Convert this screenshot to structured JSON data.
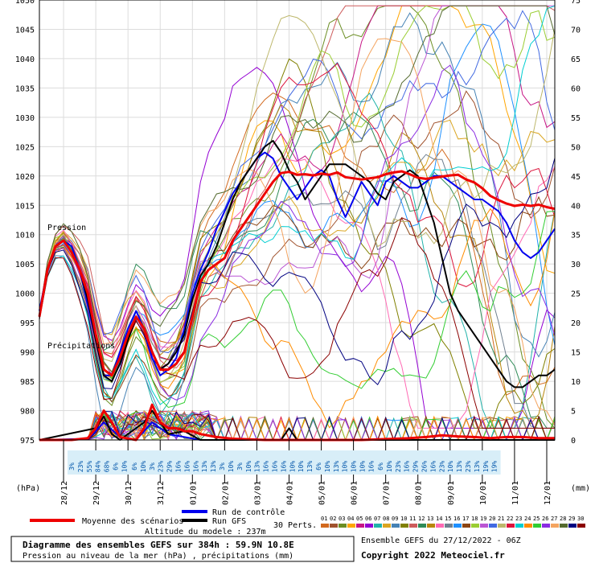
{
  "chart_data": {
    "type": "line",
    "left_axis_label": "(hPa)",
    "right_axis_label": "(mm)",
    "pressure_label": "Pression",
    "precip_label": "Précipitations",
    "y_left_ticks": [
      975,
      980,
      985,
      990,
      995,
      1000,
      1005,
      1010,
      1015,
      1020,
      1025,
      1030,
      1035,
      1040,
      1045,
      1050
    ],
    "y_left_range": [
      975,
      1050
    ],
    "y_right_ticks": [
      0,
      5,
      10,
      15,
      20,
      25,
      30,
      35,
      40,
      45,
      50,
      55,
      60,
      65,
      70,
      75
    ],
    "y_right_range": [
      0,
      75
    ],
    "x_ticks": [
      "28/12",
      "29/12",
      "30/12",
      "31/12",
      "01/01",
      "02/01",
      "03/01",
      "04/01",
      "05/01",
      "06/01",
      "07/01",
      "08/01",
      "09/01",
      "10/01",
      "11/01",
      "12/01"
    ],
    "x_range_hours": [
      0,
      384
    ],
    "grid": true,
    "snow_group_1": [
      "3%",
      "23%",
      "55%",
      "84%",
      "68%",
      "6%",
      "10%",
      "3%"
    ],
    "snow_group_2": [
      "6%",
      "10%",
      "3%",
      "23%",
      "29%",
      "16%",
      "16%",
      "16%",
      "13%",
      "13%",
      "3%"
    ],
    "snow_group_3": [
      "10%",
      "3%",
      "10%",
      "13%",
      "16%",
      "16%",
      "16%",
      "10%",
      "10%",
      "13%",
      "6%",
      "10%",
      "13%",
      "10%",
      "10%",
      "10%",
      "16%",
      "13%",
      "10%",
      "10%",
      "6%"
    ],
    "snow_group_4": [
      "6%",
      "10%",
      "23%",
      "16%",
      "29%",
      "26%",
      "16%",
      "23%",
      "10%",
      "13%",
      "23%",
      "13%",
      "19%",
      "19%"
    ],
    "series": [
      {
        "name": "Moyenne des scénarios",
        "color": "#ee0000",
        "pressure": [
          [
            0,
            996
          ],
          [
            6,
            1004
          ],
          [
            12,
            1008
          ],
          [
            18,
            1009
          ],
          [
            24,
            1007
          ],
          [
            30,
            1004
          ],
          [
            36,
            1000
          ],
          [
            42,
            993
          ],
          [
            48,
            987
          ],
          [
            54,
            986
          ],
          [
            60,
            989
          ],
          [
            66,
            993
          ],
          [
            72,
            996
          ],
          [
            78,
            994
          ],
          [
            84,
            990
          ],
          [
            90,
            987
          ],
          [
            96,
            987
          ],
          [
            102,
            988
          ],
          [
            108,
            990
          ],
          [
            114,
            996
          ],
          [
            120,
            1002
          ],
          [
            126,
            1004
          ],
          [
            132,
            1005
          ],
          [
            138,
            1006
          ],
          [
            144,
            1009
          ],
          [
            150,
            1011
          ],
          [
            156,
            1013
          ],
          [
            162,
            1015
          ],
          [
            168,
            1017
          ],
          [
            174,
            1019
          ],
          [
            180,
            1020.5
          ],
          [
            186,
            1020.7
          ],
          [
            192,
            1020.2
          ],
          [
            198,
            1020.3
          ],
          [
            204,
            1020.1
          ],
          [
            210,
            1020.4
          ],
          [
            216,
            1020.2
          ],
          [
            222,
            1020.6
          ],
          [
            228,
            1019.8
          ],
          [
            234,
            1019.6
          ],
          [
            240,
            1019.4
          ],
          [
            246,
            1019.6
          ],
          [
            252,
            1019.8
          ],
          [
            258,
            1020.3
          ],
          [
            264,
            1020.6
          ],
          [
            270,
            1020.8
          ],
          [
            276,
            1020.3
          ],
          [
            282,
            1019.7
          ],
          [
            288,
            1019.5
          ],
          [
            294,
            1019.7
          ],
          [
            300,
            1019.9
          ],
          [
            306,
            1020.1
          ],
          [
            312,
            1020.2
          ],
          [
            318,
            1019.4
          ],
          [
            324,
            1018.9
          ],
          [
            330,
            1017.9
          ],
          [
            336,
            1016.6
          ],
          [
            342,
            1015.9
          ],
          [
            348,
            1015.3
          ],
          [
            354,
            1014.9
          ],
          [
            360,
            1015.1
          ],
          [
            366,
            1014.9
          ],
          [
            372,
            1015.1
          ],
          [
            378,
            1014.7
          ],
          [
            384,
            1014.4
          ]
        ],
        "precip": [
          [
            0,
            0
          ],
          [
            12,
            0
          ],
          [
            24,
            0
          ],
          [
            36,
            0.3
          ],
          [
            42,
            2
          ],
          [
            48,
            5
          ],
          [
            54,
            3
          ],
          [
            60,
            0.5
          ],
          [
            72,
            0
          ],
          [
            78,
            2
          ],
          [
            84,
            6
          ],
          [
            90,
            3
          ],
          [
            96,
            2
          ],
          [
            102,
            2
          ],
          [
            108,
            1.5
          ],
          [
            114,
            1.5
          ],
          [
            120,
            1
          ],
          [
            132,
            0.5
          ],
          [
            144,
            0.2
          ],
          [
            168,
            0
          ],
          [
            240,
            0
          ],
          [
            276,
            0.3
          ],
          [
            288,
            0.5
          ],
          [
            300,
            0.8
          ],
          [
            312,
            0.6
          ],
          [
            324,
            0.5
          ],
          [
            336,
            0.3
          ],
          [
            348,
            0.5
          ],
          [
            360,
            0.5
          ],
          [
            372,
            0.3
          ],
          [
            384,
            0.3
          ]
        ]
      },
      {
        "name": "Run de contrôle",
        "color": "#0000ee",
        "pressure": [
          [
            0,
            997
          ],
          [
            6,
            1004
          ],
          [
            12,
            1008
          ],
          [
            18,
            1009
          ],
          [
            24,
            1008
          ],
          [
            30,
            1004
          ],
          [
            36,
            998
          ],
          [
            42,
            992
          ],
          [
            48,
            986
          ],
          [
            54,
            986
          ],
          [
            60,
            990
          ],
          [
            66,
            994
          ],
          [
            72,
            997
          ],
          [
            78,
            994
          ],
          [
            84,
            989
          ],
          [
            90,
            986
          ],
          [
            96,
            987
          ],
          [
            102,
            989
          ],
          [
            108,
            994
          ],
          [
            114,
            1000
          ],
          [
            120,
            1004
          ],
          [
            126,
            1007
          ],
          [
            132,
            1011
          ],
          [
            138,
            1014
          ],
          [
            144,
            1017
          ],
          [
            150,
            1019
          ],
          [
            156,
            1021
          ],
          [
            162,
            1023
          ],
          [
            168,
            1024
          ],
          [
            174,
            1023
          ],
          [
            180,
            1020
          ],
          [
            186,
            1018
          ],
          [
            192,
            1016
          ],
          [
            198,
            1018
          ],
          [
            204,
            1020
          ],
          [
            210,
            1021
          ],
          [
            216,
            1020
          ],
          [
            222,
            1016
          ],
          [
            228,
            1013
          ],
          [
            234,
            1016
          ],
          [
            240,
            1019
          ],
          [
            246,
            1017
          ],
          [
            252,
            1015
          ],
          [
            258,
            1019
          ],
          [
            264,
            1020
          ],
          [
            270,
            1019
          ],
          [
            276,
            1018
          ],
          [
            282,
            1018
          ],
          [
            288,
            1019
          ],
          [
            294,
            1020
          ],
          [
            300,
            1020
          ],
          [
            306,
            1019
          ],
          [
            312,
            1018
          ],
          [
            318,
            1017
          ],
          [
            324,
            1016
          ],
          [
            330,
            1016
          ],
          [
            336,
            1015
          ],
          [
            342,
            1014
          ],
          [
            348,
            1012
          ],
          [
            354,
            1009
          ],
          [
            360,
            1007
          ],
          [
            366,
            1006
          ],
          [
            372,
            1007
          ],
          [
            378,
            1009
          ],
          [
            384,
            1011
          ]
        ],
        "precip": [
          [
            0,
            0
          ],
          [
            36,
            0.2
          ],
          [
            42,
            1.5
          ],
          [
            48,
            3
          ],
          [
            60,
            0.5
          ],
          [
            72,
            0
          ],
          [
            84,
            3
          ],
          [
            96,
            1
          ],
          [
            108,
            0.5
          ],
          [
            120,
            0
          ],
          [
            384,
            0
          ]
        ]
      },
      {
        "name": "Run GFS",
        "color": "#000000",
        "pressure": [
          [
            0,
            996
          ],
          [
            6,
            1004
          ],
          [
            12,
            1008
          ],
          [
            18,
            1009
          ],
          [
            24,
            1007
          ],
          [
            30,
            1004
          ],
          [
            36,
            999
          ],
          [
            42,
            992
          ],
          [
            48,
            986
          ],
          [
            54,
            985
          ],
          [
            60,
            988
          ],
          [
            66,
            992
          ],
          [
            72,
            996
          ],
          [
            78,
            994
          ],
          [
            84,
            990
          ],
          [
            90,
            987
          ],
          [
            96,
            988
          ],
          [
            102,
            990
          ],
          [
            108,
            993
          ],
          [
            114,
            999
          ],
          [
            120,
            1003
          ],
          [
            126,
            1005
          ],
          [
            132,
            1008
          ],
          [
            138,
            1012
          ],
          [
            144,
            1016
          ],
          [
            150,
            1019
          ],
          [
            156,
            1021
          ],
          [
            162,
            1023
          ],
          [
            168,
            1025
          ],
          [
            174,
            1026
          ],
          [
            180,
            1024
          ],
          [
            186,
            1021
          ],
          [
            192,
            1019
          ],
          [
            198,
            1016
          ],
          [
            204,
            1018
          ],
          [
            210,
            1020
          ],
          [
            216,
            1022
          ],
          [
            222,
            1022
          ],
          [
            228,
            1022
          ],
          [
            234,
            1021
          ],
          [
            240,
            1020
          ],
          [
            246,
            1019
          ],
          [
            252,
            1017
          ],
          [
            258,
            1016
          ],
          [
            264,
            1019
          ],
          [
            270,
            1020
          ],
          [
            276,
            1021
          ],
          [
            282,
            1020
          ],
          [
            288,
            1016
          ],
          [
            294,
            1012
          ],
          [
            300,
            1006
          ],
          [
            306,
            1000
          ],
          [
            312,
            997
          ],
          [
            318,
            995
          ],
          [
            324,
            993
          ],
          [
            330,
            991
          ],
          [
            336,
            989
          ],
          [
            342,
            987
          ],
          [
            348,
            985
          ],
          [
            354,
            984
          ],
          [
            360,
            984
          ],
          [
            366,
            985
          ],
          [
            372,
            986
          ],
          [
            378,
            986
          ],
          [
            384,
            987
          ]
        ],
        "precip": [
          [
            0,
            0
          ],
          [
            42,
            2
          ],
          [
            48,
            4
          ],
          [
            54,
            1
          ],
          [
            60,
            0
          ],
          [
            78,
            3
          ],
          [
            84,
            5
          ],
          [
            96,
            1
          ],
          [
            108,
            1.5
          ],
          [
            120,
            0
          ],
          [
            180,
            0
          ],
          [
            186,
            2
          ],
          [
            192,
            0
          ],
          [
            240,
            0
          ],
          [
            384,
            0
          ]
        ]
      }
    ]
  },
  "legend": {
    "mean_label": "Moyenne des scénarios",
    "control_label": "Run de contrôle",
    "gfs_label": "Run GFS",
    "perts_label": "30 Perts.",
    "pert_numbers": [
      "01",
      "02",
      "03",
      "04",
      "05",
      "06",
      "07",
      "08",
      "09",
      "10",
      "11",
      "12",
      "13",
      "14",
      "15",
      "16",
      "17",
      "18",
      "19",
      "20",
      "21",
      "22",
      "23",
      "24",
      "25",
      "26",
      "27",
      "28",
      "29",
      "30"
    ],
    "pert_colors": [
      "#d2691e",
      "#a0522d",
      "#6b8e23",
      "#ffa500",
      "#c71585",
      "#9400d3",
      "#20b2aa",
      "#daa520",
      "#4682b4",
      "#808000",
      "#cd5c5c",
      "#2e8b57",
      "#b8860b",
      "#ff69b4",
      "#708090",
      "#1e90ff",
      "#8b4513",
      "#9acd32",
      "#ba55d3",
      "#4169e1",
      "#bdb76b",
      "#dc143c",
      "#00ced1",
      "#ff8c00",
      "#32cd32",
      "#8a2be2",
      "#f4a460",
      "#556b2f",
      "#000080",
      "#8b0000"
    ]
  },
  "model_altitude": "Altitude du modele : 237m",
  "footer": {
    "title": "Diagramme des ensembles GEFS sur 384h : 59.9N 10.8E",
    "subtitle": "Pression au niveau de la mer (hPa) , précipitations (mm)",
    "run": "Ensemble GEFS du 27/12/2022 - 06Z",
    "copyright": "Copyright 2022 Meteociel.fr"
  }
}
